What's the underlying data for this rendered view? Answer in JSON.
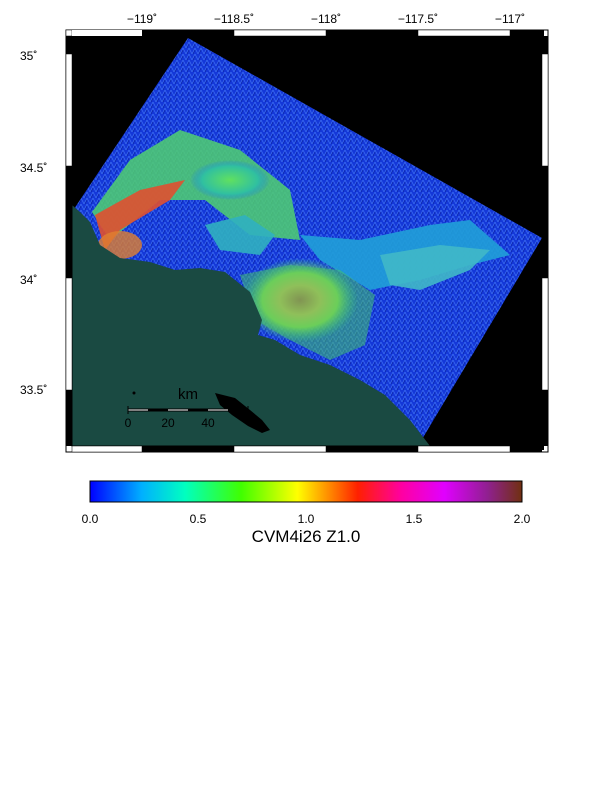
{
  "map": {
    "lon_labels": [
      "−119˚",
      "−118.5˚",
      "−118˚",
      "−117.5˚",
      "−117˚"
    ],
    "lat_labels": [
      "35˚",
      "34.5˚",
      "34˚",
      "33.5˚"
    ]
  },
  "scale_bar": {
    "unit": "km",
    "labels": [
      "0",
      "20",
      "40"
    ]
  },
  "colorbar": {
    "title": "CVM4i26 Z1.0",
    "tick_labels": [
      "0.0",
      "0.5",
      "1.0",
      "1.5",
      "2.0"
    ],
    "range": [
      0.0,
      2.0
    ],
    "colors": [
      "#0000ff",
      "#00ffff",
      "#00ff00",
      "#ffff00",
      "#ff8000",
      "#ff0000",
      "#ff00ff",
      "#a020f0",
      "#703010"
    ]
  },
  "colors": {
    "ocean": "#1a4a42",
    "background": "#000000",
    "low_velocity": "#1040e0"
  }
}
